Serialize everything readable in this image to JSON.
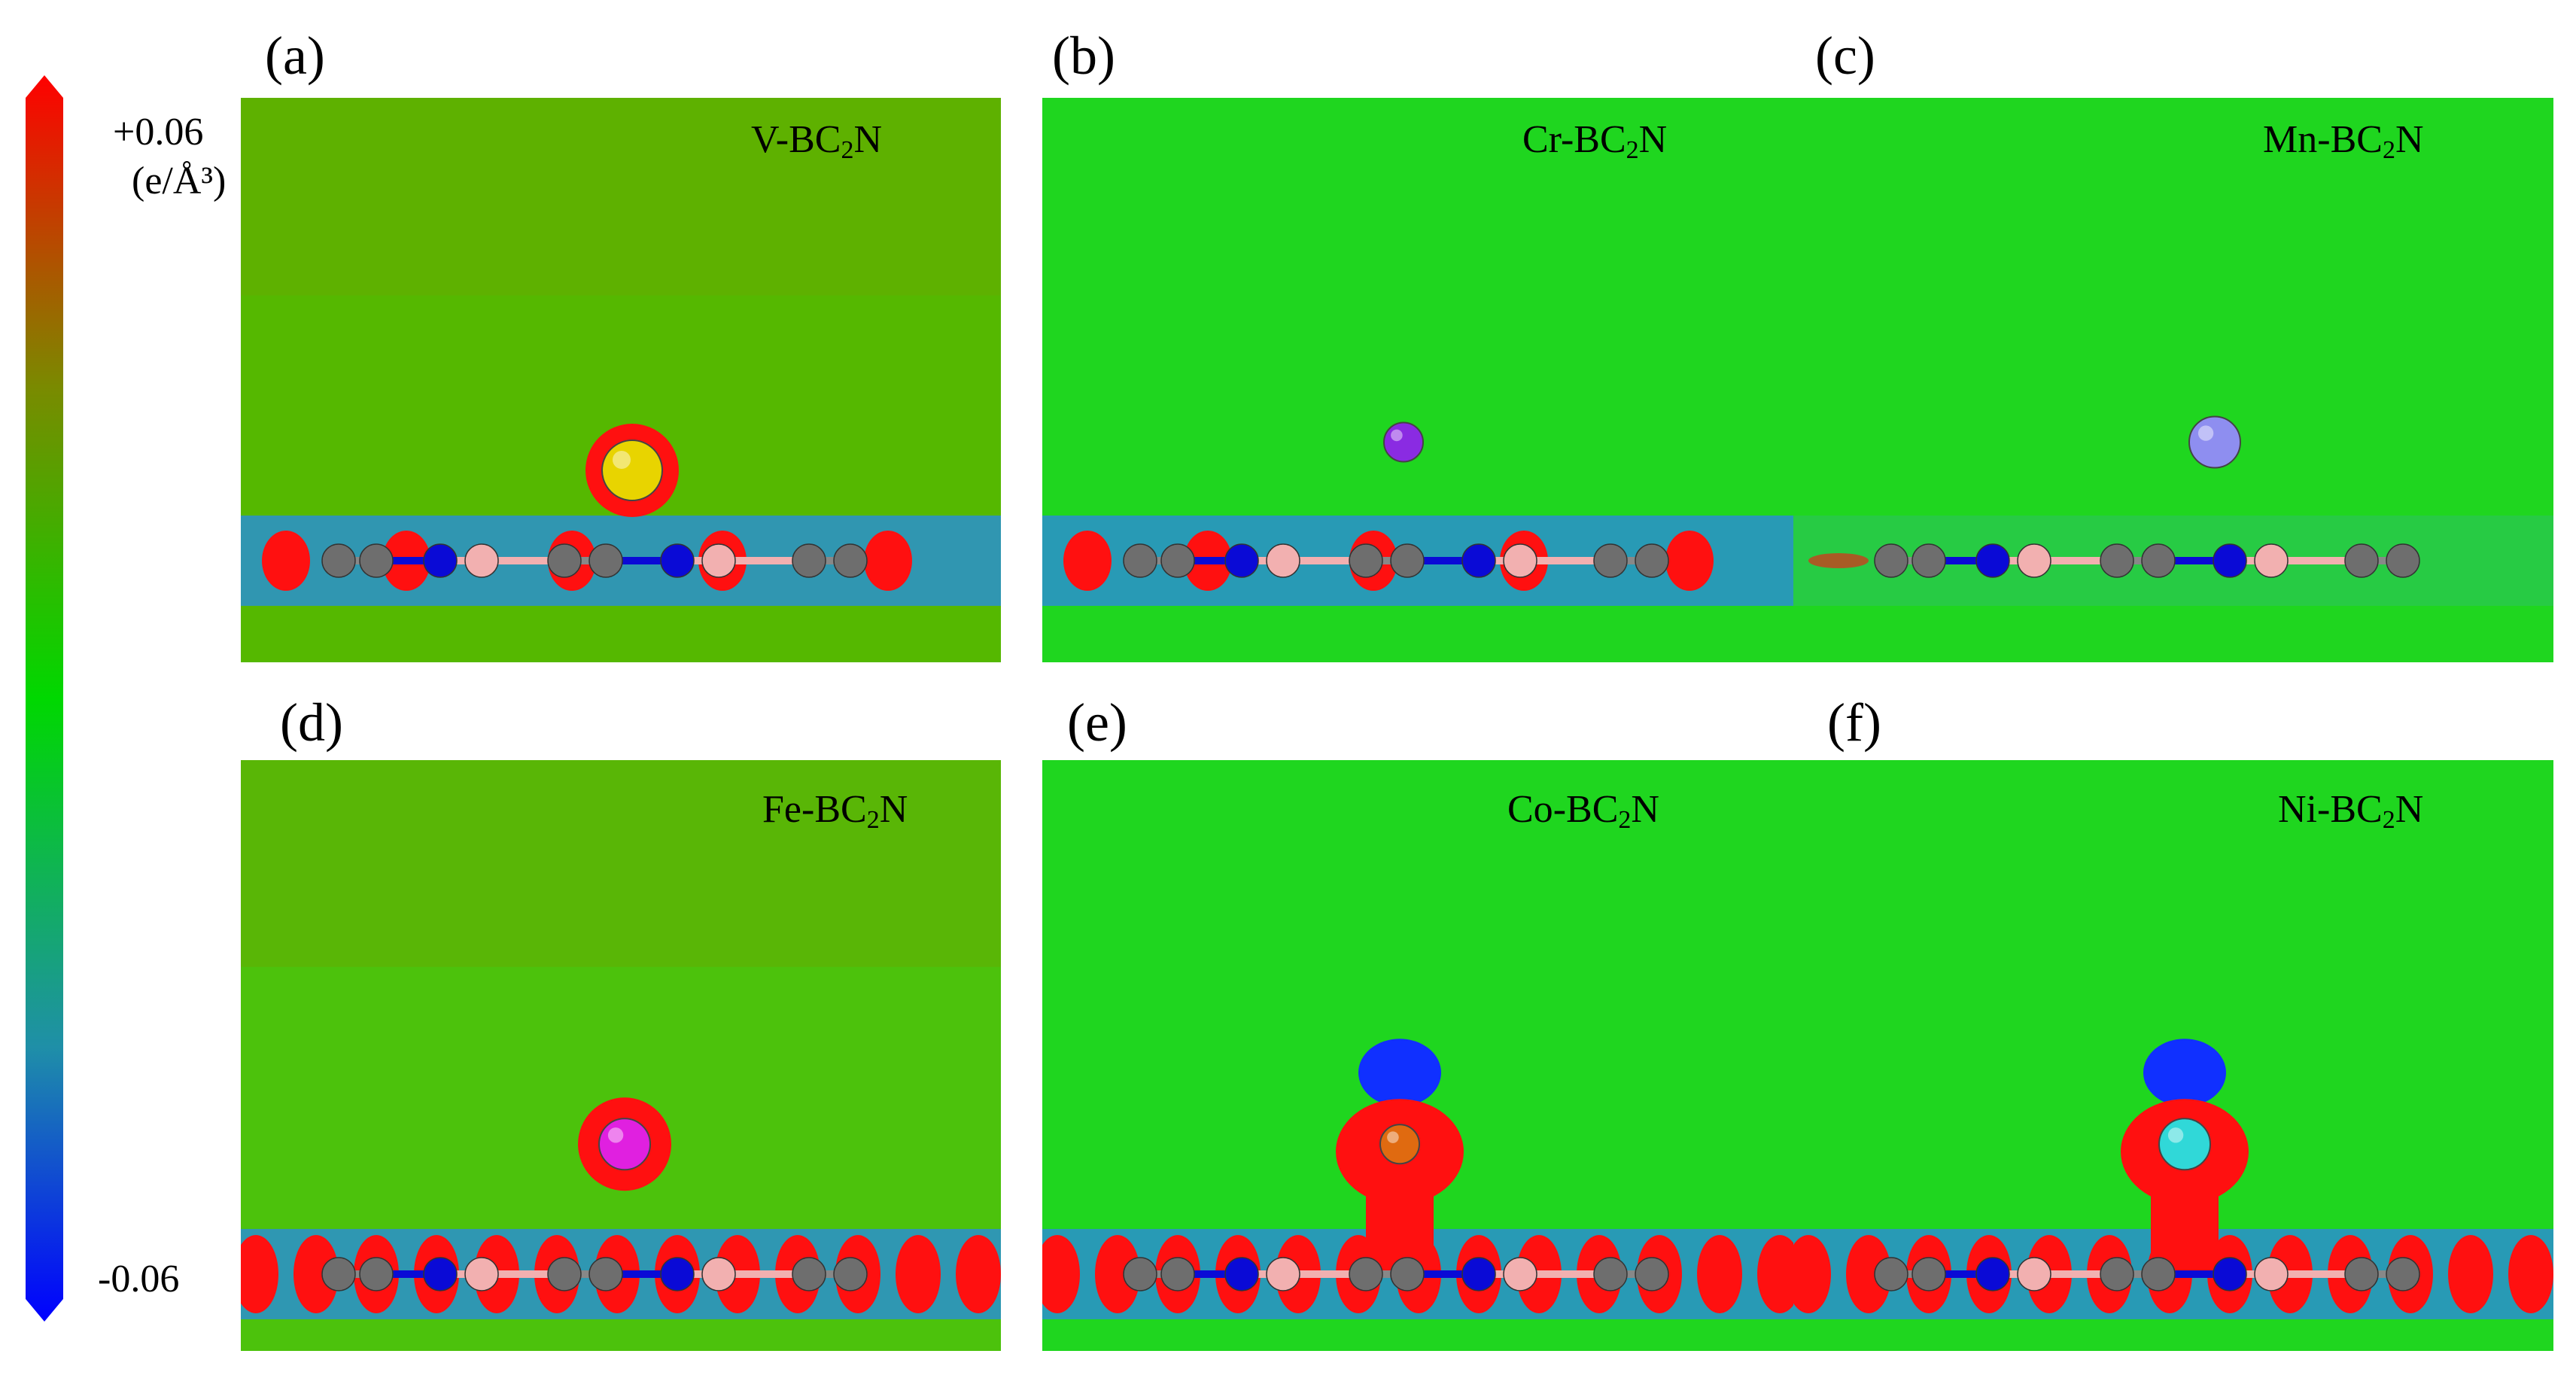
{
  "colorbar": {
    "max_label": "+0.06",
    "unit_label": "(e/Å³)",
    "min_label": "-0.06",
    "colors": [
      "#ff0000",
      "#7a8a00",
      "#00d800",
      "#1f8fa8",
      "#0000ff"
    ]
  },
  "panels": [
    {
      "label": "(a)",
      "metal": "V",
      "suffix": "-BC",
      "sub": "2",
      "tail": "N",
      "metal_color": "#e8d400",
      "background": "#55b800"
    },
    {
      "label": "(b)",
      "metal": "Cr",
      "suffix": "-BC",
      "sub": "2",
      "tail": "N",
      "metal_color": "#8a2be2",
      "background": "#1fd61f"
    },
    {
      "label": "(c)",
      "metal": "Mn",
      "suffix": "-BC",
      "sub": "2",
      "tail": "N",
      "metal_color": "#8e8ef0",
      "background": "#1fd61f"
    },
    {
      "label": "(d)",
      "metal": "Fe",
      "suffix": "-BC",
      "sub": "2",
      "tail": "N",
      "metal_color": "#e020e0",
      "background": "#4cc20c"
    },
    {
      "label": "(e)",
      "metal": "Co",
      "suffix": "-BC",
      "sub": "2",
      "tail": "N",
      "metal_color": "#e06a10",
      "background": "#1fd61f"
    },
    {
      "label": "(f)",
      "metal": "Ni",
      "suffix": "-BC",
      "sub": "2",
      "tail": "N",
      "metal_color": "#30d8d8",
      "background": "#1fd61f"
    }
  ],
  "atom_colors": {
    "carbon": "#6e6e6e",
    "nitrogen": "#0a0ad6",
    "boron": "#f2b0b0"
  }
}
